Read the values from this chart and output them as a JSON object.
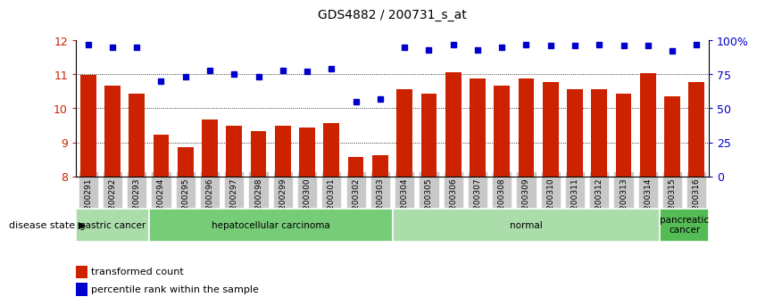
{
  "title": "GDS4882 / 200731_s_at",
  "samples": [
    "GSM1200291",
    "GSM1200292",
    "GSM1200293",
    "GSM1200294",
    "GSM1200295",
    "GSM1200296",
    "GSM1200297",
    "GSM1200298",
    "GSM1200299",
    "GSM1200300",
    "GSM1200301",
    "GSM1200302",
    "GSM1200303",
    "GSM1200304",
    "GSM1200305",
    "GSM1200306",
    "GSM1200307",
    "GSM1200308",
    "GSM1200309",
    "GSM1200310",
    "GSM1200311",
    "GSM1200312",
    "GSM1200313",
    "GSM1200314",
    "GSM1200315",
    "GSM1200316"
  ],
  "transformed_count": [
    10.97,
    10.67,
    10.43,
    9.23,
    8.87,
    9.68,
    9.48,
    9.32,
    9.48,
    9.43,
    9.57,
    8.57,
    8.63,
    10.57,
    10.43,
    11.07,
    10.88,
    10.67,
    10.88,
    10.78,
    10.57,
    10.57,
    10.43,
    11.03,
    10.35,
    10.78
  ],
  "percentile_rank": [
    97,
    95,
    95,
    70,
    73,
    78,
    75,
    73,
    78,
    77,
    79,
    55,
    57,
    95,
    93,
    97,
    93,
    95,
    97,
    96,
    96,
    97,
    96,
    96,
    92,
    97
  ],
  "bar_color": "#cc2200",
  "dot_color": "#0000cc",
  "ylim_left": [
    8,
    12
  ],
  "ylim_right": [
    0,
    100
  ],
  "yticks_left": [
    8,
    9,
    10,
    11,
    12
  ],
  "yticks_right": [
    0,
    25,
    50,
    75,
    100
  ],
  "ytick_labels_right": [
    "0",
    "25",
    "50",
    "75",
    "100%"
  ],
  "disease_groups": [
    {
      "label": "gastric cancer",
      "start": 0,
      "end": 3,
      "color": "#aaddaa"
    },
    {
      "label": "hepatocellular carcinoma",
      "start": 3,
      "end": 13,
      "color": "#77cc77"
    },
    {
      "label": "normal",
      "start": 13,
      "end": 24,
      "color": "#aaddaa"
    },
    {
      "label": "pancreatic\ncancer",
      "start": 24,
      "end": 26,
      "color": "#55bb55"
    }
  ],
  "disease_state_label": "disease state",
  "legend_bar_label": "transformed count",
  "legend_dot_label": "percentile rank within the sample",
  "background_color": "#ffffff",
  "tick_bg_color": "#c8c8c8"
}
